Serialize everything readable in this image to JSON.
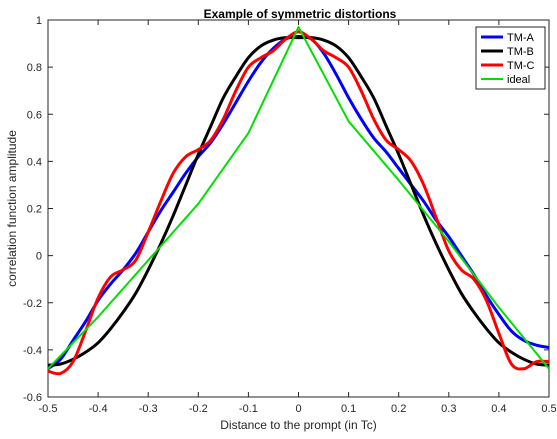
{
  "chart_data": {
    "type": "line",
    "title": "Example of symmetric distortions",
    "xlabel": "Distance to the prompt (in Tc)",
    "ylabel": "correlation function amplitude",
    "xlim": [
      -0.5,
      0.5
    ],
    "ylim": [
      -0.6,
      1
    ],
    "xticks": [
      -0.5,
      -0.4,
      -0.3,
      -0.2,
      -0.1,
      0,
      0.1,
      0.2,
      0.3,
      0.4,
      0.5
    ],
    "xtick_labels": [
      "-0.5",
      "-0.4",
      "-0.3",
      "-0.2",
      "-0.1",
      "0",
      "0.1",
      "0.2",
      "0.3",
      "0.4",
      "0.5"
    ],
    "yticks": [
      -0.6,
      -0.4,
      -0.2,
      0,
      0.2,
      0.4,
      0.6,
      0.8,
      1
    ],
    "ytick_labels": [
      "-0.6",
      "-0.4",
      "-0.2",
      "0",
      "0.2",
      "0.4",
      "0.6",
      "0.8",
      "1"
    ],
    "grid": false,
    "legend_position": "top-right",
    "series": [
      {
        "name": "TM-A",
        "color": "#0000ff",
        "x": [
          -0.5,
          -0.475,
          -0.45,
          -0.425,
          -0.4,
          -0.375,
          -0.35,
          -0.325,
          -0.3,
          -0.275,
          -0.25,
          -0.225,
          -0.2,
          -0.175,
          -0.15,
          -0.125,
          -0.1,
          -0.075,
          -0.05,
          -0.025,
          0,
          0.025,
          0.05,
          0.075,
          0.1,
          0.125,
          0.15,
          0.175,
          0.2,
          0.225,
          0.25,
          0.275,
          0.3,
          0.325,
          0.35,
          0.375,
          0.4,
          0.425,
          0.45,
          0.475,
          0.5
        ],
        "y": [
          -0.48,
          -0.44,
          -0.36,
          -0.28,
          -0.19,
          -0.12,
          -0.06,
          0.01,
          0.1,
          0.19,
          0.27,
          0.35,
          0.42,
          0.48,
          0.56,
          0.65,
          0.74,
          0.82,
          0.88,
          0.92,
          0.93,
          0.92,
          0.86,
          0.77,
          0.67,
          0.58,
          0.5,
          0.44,
          0.37,
          0.3,
          0.23,
          0.15,
          0.08,
          0.0,
          -0.08,
          -0.17,
          -0.25,
          -0.32,
          -0.36,
          -0.38,
          -0.39
        ]
      },
      {
        "name": "TM-B",
        "color": "#000000",
        "x": [
          -0.5,
          -0.475,
          -0.45,
          -0.425,
          -0.4,
          -0.375,
          -0.35,
          -0.325,
          -0.3,
          -0.275,
          -0.25,
          -0.225,
          -0.2,
          -0.175,
          -0.15,
          -0.125,
          -0.1,
          -0.075,
          -0.05,
          -0.025,
          0,
          0.025,
          0.05,
          0.075,
          0.1,
          0.125,
          0.15,
          0.175,
          0.2,
          0.225,
          0.25,
          0.275,
          0.3,
          0.325,
          0.35,
          0.375,
          0.4,
          0.425,
          0.45,
          0.475,
          0.5
        ],
        "y": [
          -0.465,
          -0.46,
          -0.44,
          -0.41,
          -0.37,
          -0.31,
          -0.24,
          -0.16,
          -0.06,
          0.05,
          0.17,
          0.3,
          0.43,
          0.55,
          0.67,
          0.76,
          0.84,
          0.89,
          0.915,
          0.925,
          0.925,
          0.925,
          0.915,
          0.89,
          0.84,
          0.76,
          0.67,
          0.55,
          0.43,
          0.3,
          0.17,
          0.05,
          -0.06,
          -0.16,
          -0.24,
          -0.31,
          -0.37,
          -0.41,
          -0.44,
          -0.46,
          -0.465
        ]
      },
      {
        "name": "TM-C",
        "color": "#ff0000",
        "x": [
          -0.5,
          -0.475,
          -0.45,
          -0.425,
          -0.4,
          -0.375,
          -0.35,
          -0.325,
          -0.3,
          -0.275,
          -0.25,
          -0.225,
          -0.2,
          -0.175,
          -0.15,
          -0.125,
          -0.1,
          -0.075,
          -0.05,
          -0.025,
          0,
          0.025,
          0.05,
          0.075,
          0.1,
          0.125,
          0.15,
          0.175,
          0.2,
          0.225,
          0.25,
          0.275,
          0.3,
          0.325,
          0.35,
          0.375,
          0.4,
          0.425,
          0.45,
          0.475,
          0.5
        ],
        "y": [
          -0.49,
          -0.5,
          -0.45,
          -0.32,
          -0.18,
          -0.09,
          -0.06,
          -0.02,
          0.1,
          0.23,
          0.35,
          0.42,
          0.45,
          0.49,
          0.58,
          0.7,
          0.8,
          0.84,
          0.87,
          0.92,
          0.95,
          0.92,
          0.87,
          0.84,
          0.8,
          0.7,
          0.58,
          0.49,
          0.45,
          0.4,
          0.3,
          0.16,
          0.02,
          -0.06,
          -0.1,
          -0.19,
          -0.33,
          -0.46,
          -0.48,
          -0.45,
          -0.45
        ]
      },
      {
        "name": "ideal",
        "color": "#00e000",
        "x": [
          -0.5,
          -0.4,
          -0.3,
          -0.2,
          -0.1,
          0,
          0.1,
          0.2,
          0.3,
          0.4,
          0.5
        ],
        "y": [
          -0.48,
          -0.26,
          -0.02,
          0.22,
          0.52,
          0.97,
          0.57,
          0.32,
          0.06,
          -0.22,
          -0.48
        ]
      }
    ]
  }
}
